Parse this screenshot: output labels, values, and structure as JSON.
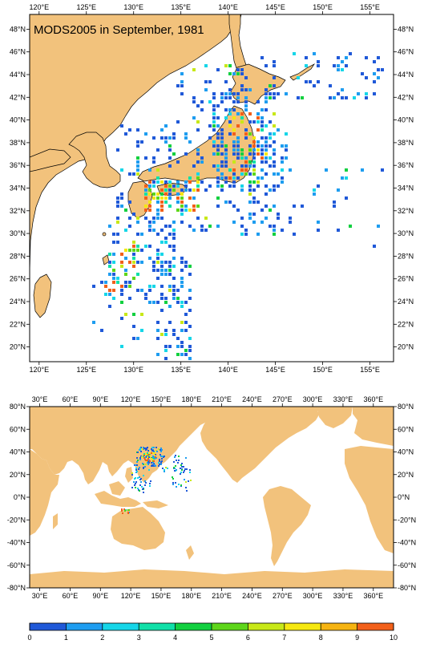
{
  "maps": {
    "regional": {
      "title": "MODS2005 in September, 1981",
      "x_ticks": [
        "120°E",
        "125°E",
        "130°E",
        "135°E",
        "140°E",
        "145°E",
        "150°E",
        "155°E"
      ],
      "y_ticks": [
        "48°N",
        "46°N",
        "44°N",
        "42°N",
        "40°N",
        "38°N",
        "36°N",
        "34°N",
        "32°N",
        "30°N",
        "28°N",
        "26°N",
        "24°N",
        "22°N",
        "20°N"
      ],
      "lon_range": [
        119,
        157.5
      ],
      "lat_range": [
        18.7,
        49.3
      ]
    },
    "global": {
      "x_ticks": [
        "30°E",
        "60°E",
        "90°E",
        "120°E",
        "150°E",
        "180°E",
        "210°E",
        "240°E",
        "270°E",
        "300°E",
        "330°E",
        "360°E"
      ],
      "y_ticks": [
        "80°N",
        "60°N",
        "40°N",
        "20°N",
        "0°N",
        "-20°N",
        "-40°N",
        "-60°N",
        "-80°N"
      ],
      "lon_range": [
        20,
        380
      ],
      "lat_range": [
        -80,
        80
      ]
    }
  },
  "legend": {
    "labels": [
      "0",
      "1",
      "2",
      "3",
      "4",
      "5",
      "6",
      "7",
      "8",
      "9",
      "10"
    ],
    "colors": [
      "#2059d8",
      "#1e9df0",
      "#16d6e8",
      "#10e0a8",
      "#12d040",
      "#5ed61a",
      "#c8e818",
      "#f6e810",
      "#f6b412",
      "#f2601a"
    ]
  },
  "colors": {
    "land": "#f2c27c",
    "ocean": "#ffffff"
  }
}
